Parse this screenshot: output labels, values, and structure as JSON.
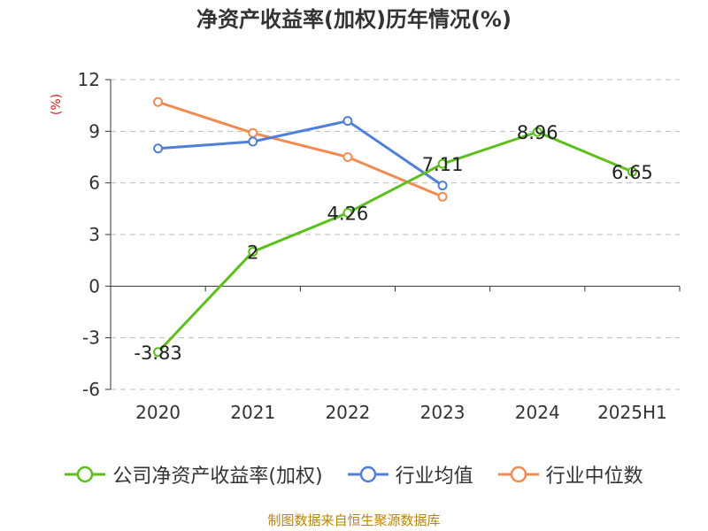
{
  "chart_data": {
    "type": "line",
    "title": "净资产收益率(加权)历年情况(%)",
    "ylabel": "(%)",
    "categories": [
      "2020",
      "2021",
      "2022",
      "2023",
      "2024",
      "2025H1"
    ],
    "ylim": [
      -6,
      12
    ],
    "yticks": [
      "12",
      "9",
      "6",
      "3",
      "0",
      "-3",
      "-6"
    ],
    "grid": true,
    "legend_position": "bottom",
    "series": [
      {
        "name": "公司净资产收益率(加权)",
        "color": "#5cbf1e",
        "values": [
          -3.83,
          2,
          4.26,
          7.11,
          8.96,
          6.65
        ],
        "labels": [
          "-3.83",
          "2",
          "4.26",
          "7.11",
          "8.96",
          "6.65"
        ]
      },
      {
        "name": "行业均值",
        "color": "#4f7fd8",
        "values": [
          8.0,
          8.4,
          9.6,
          5.85,
          null,
          null
        ]
      },
      {
        "name": "行业中位数",
        "color": "#f28b52",
        "values": [
          10.7,
          8.9,
          7.5,
          5.2,
          null,
          null
        ]
      }
    ]
  },
  "source": "制图数据来自恒生聚源数据库"
}
